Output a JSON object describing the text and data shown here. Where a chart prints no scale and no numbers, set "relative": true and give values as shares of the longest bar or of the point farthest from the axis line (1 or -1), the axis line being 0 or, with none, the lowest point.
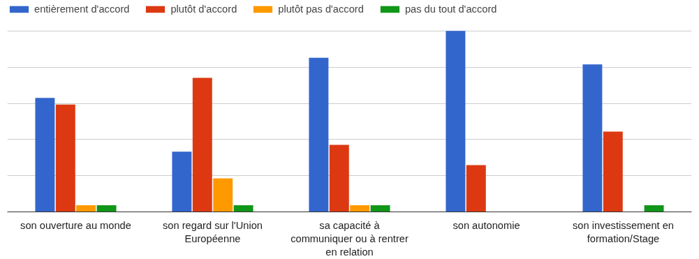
{
  "chart_data": {
    "type": "bar",
    "relative": true,
    "categories": [
      "son ouverture au monde",
      "son regard sur l'Union Européenne",
      "sa capacité à communiquer ou à rentrer en relation",
      "son autonomie",
      "son investissement en formation/Stage"
    ],
    "series": [
      {
        "name": "entièrement d'accord",
        "color": "#3366cc",
        "values": [
          0.63,
          0.333,
          0.852,
          1,
          0.815
        ]
      },
      {
        "name": "plutôt d'accord",
        "color": "#dc3912",
        "values": [
          0.593,
          0.741,
          0.37,
          0.259,
          0.444
        ]
      },
      {
        "name": "plutôt pas d'accord",
        "color": "#ff9900",
        "values": [
          0.037,
          0.185,
          0.037,
          0,
          0
        ]
      },
      {
        "name": "pas du tout d'accord",
        "color": "#109618",
        "values": [
          0.037,
          0.037,
          0.037,
          0,
          0.037
        ]
      }
    ],
    "grid": "y",
    "legend": "top left"
  }
}
